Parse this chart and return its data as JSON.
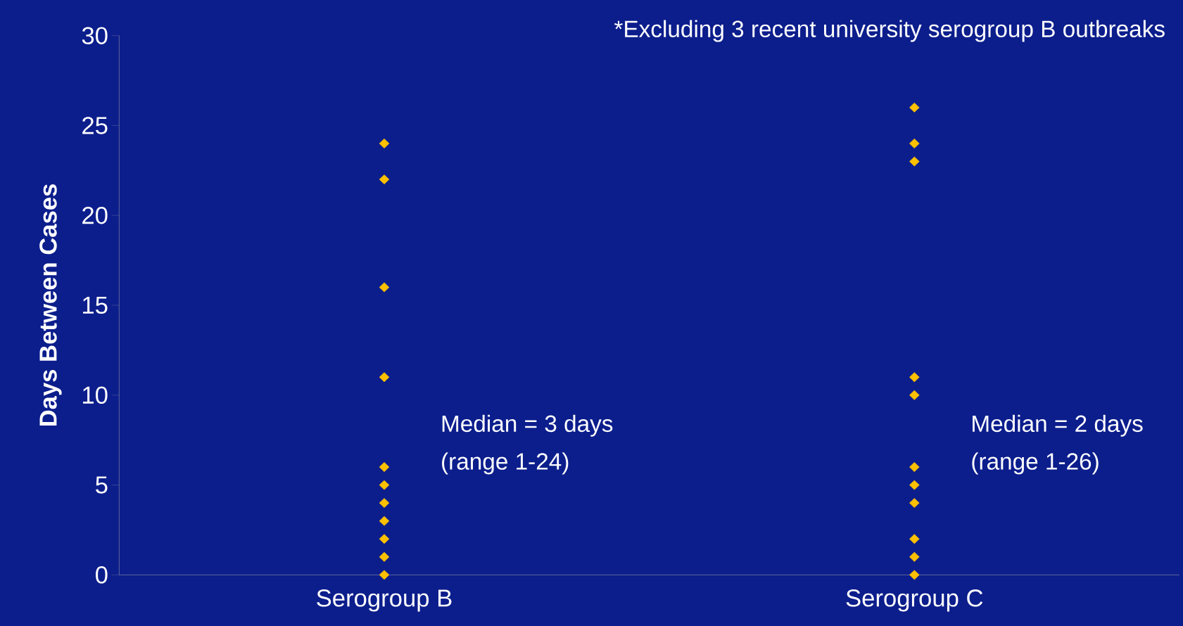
{
  "chart_data": {
    "type": "scatter",
    "ylabel": "Days Between Cases",
    "categories": [
      "Serogroup B",
      "Serogroup C"
    ],
    "series": [
      {
        "color": "#ffc000",
        "x": [
          "Serogroup B",
          "Serogroup B",
          "Serogroup B",
          "Serogroup B",
          "Serogroup B",
          "Serogroup B",
          "Serogroup B",
          "Serogroup B",
          "Serogroup B",
          "Serogroup B",
          "Serogroup B"
        ],
        "values": [
          0,
          1,
          2,
          3,
          4,
          5,
          6,
          11,
          16,
          22,
          24
        ]
      },
      {
        "color": "#ffc000",
        "x": [
          "Serogroup C",
          "Serogroup C",
          "Serogroup C",
          "Serogroup C",
          "Serogroup C",
          "Serogroup C",
          "Serogroup C",
          "Serogroup C",
          "Serogroup C",
          "Serogroup C",
          "Serogroup C"
        ],
        "values": [
          0,
          1,
          2,
          4,
          5,
          6,
          10,
          11,
          23,
          24,
          26
        ]
      }
    ],
    "marker": "diamond",
    "grid": false,
    "ylim": [
      0,
      30
    ],
    "yticks": [
      0,
      5,
      10,
      15,
      20,
      25,
      30
    ],
    "annotations": [
      "*Excluding 3 recent university serogroup B outbreaks",
      "Median = 3 days",
      "(range 1-24)",
      "Median = 2 days",
      "(range 1-26)"
    ]
  }
}
